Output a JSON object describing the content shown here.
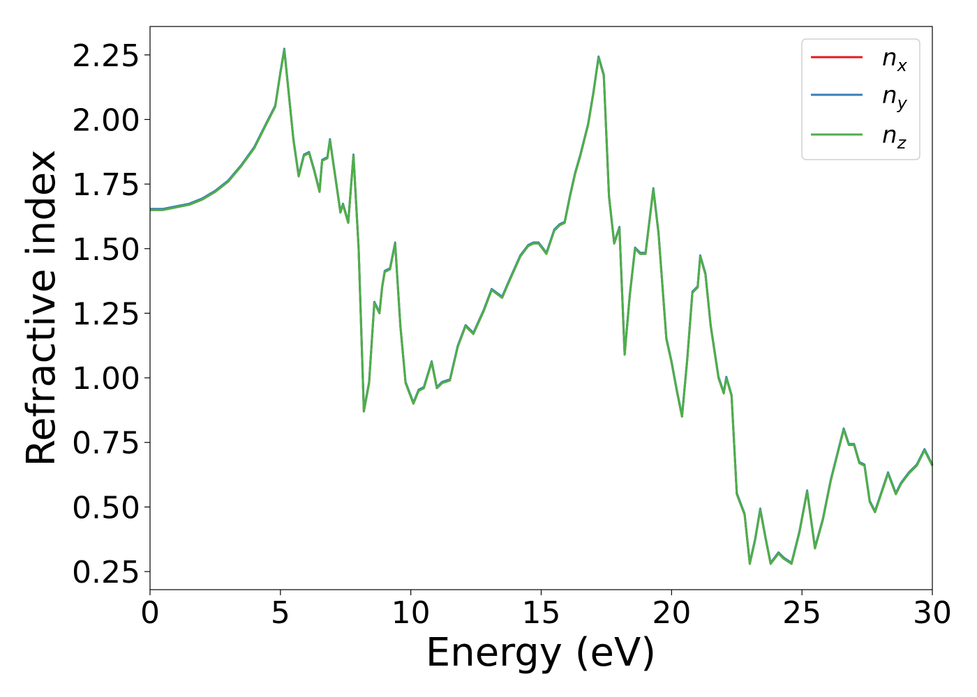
{
  "chart_data": {
    "type": "line",
    "xlabel": "Energy (eV)",
    "ylabel": "Refractive index",
    "xlim": [
      0,
      30
    ],
    "ylim": [
      0.18,
      2.36
    ],
    "x_ticks": [
      "0",
      "5",
      "10",
      "15",
      "20",
      "25",
      "30"
    ],
    "y_ticks": [
      "0.25",
      "0.50",
      "0.75",
      "1.00",
      "1.25",
      "1.50",
      "1.75",
      "2.00",
      "2.25"
    ],
    "grid": false,
    "legend_position": "top-right",
    "series": [
      {
        "name": "n",
        "subscript": "x",
        "color": "#e41a1c"
      },
      {
        "name": "n",
        "subscript": "y",
        "color": "#377eb8"
      },
      {
        "name": "n",
        "subscript": "z",
        "color": "#4daf4a"
      }
    ],
    "x": [
      0,
      0.5,
      1,
      1.5,
      2,
      2.5,
      3,
      3.5,
      4,
      4.5,
      4.8,
      5.0,
      5.15,
      5.3,
      5.5,
      5.7,
      5.9,
      6.1,
      6.3,
      6.5,
      6.6,
      6.8,
      6.9,
      7.1,
      7.3,
      7.4,
      7.6,
      7.8,
      8.0,
      8.2,
      8.4,
      8.6,
      8.8,
      8.9,
      9.0,
      9.2,
      9.4,
      9.6,
      9.8,
      10.1,
      10.3,
      10.5,
      10.8,
      11.0,
      11.2,
      11.5,
      11.8,
      12.1,
      12.4,
      12.8,
      13.1,
      13.5,
      13.8,
      14.2,
      14.5,
      14.7,
      14.9,
      15.2,
      15.5,
      15.7,
      15.9,
      16.1,
      16.3,
      16.5,
      16.8,
      17.0,
      17.2,
      17.4,
      17.6,
      17.8,
      18.0,
      18.2,
      18.4,
      18.6,
      18.8,
      19.0,
      19.3,
      19.5,
      19.8,
      20.0,
      20.2,
      20.4,
      20.6,
      20.8,
      21.0,
      21.1,
      21.3,
      21.5,
      21.8,
      22.0,
      22.1,
      22.3,
      22.5,
      22.8,
      23.0,
      23.2,
      23.4,
      23.6,
      23.8,
      24.1,
      24.3,
      24.6,
      24.9,
      25.2,
      25.5,
      25.8,
      26.1,
      26.3,
      26.6,
      26.8,
      27.0,
      27.2,
      27.4,
      27.6,
      27.8,
      28.0,
      28.3,
      28.6,
      28.8,
      29.1,
      29.4,
      29.7,
      30.0
    ],
    "y": [
      1.65,
      1.65,
      1.66,
      1.67,
      1.69,
      1.72,
      1.76,
      1.82,
      1.89,
      1.99,
      2.05,
      2.18,
      2.27,
      2.12,
      1.92,
      1.78,
      1.86,
      1.87,
      1.8,
      1.72,
      1.84,
      1.85,
      1.92,
      1.78,
      1.64,
      1.67,
      1.6,
      1.86,
      1.5,
      0.87,
      0.98,
      1.29,
      1.25,
      1.35,
      1.41,
      1.42,
      1.52,
      1.2,
      0.98,
      0.9,
      0.95,
      0.96,
      1.06,
      0.96,
      0.98,
      0.99,
      1.12,
      1.2,
      1.17,
      1.26,
      1.34,
      1.31,
      1.38,
      1.47,
      1.51,
      1.52,
      1.52,
      1.48,
      1.57,
      1.59,
      1.6,
      1.7,
      1.79,
      1.86,
      1.98,
      2.1,
      2.24,
      2.17,
      1.7,
      1.52,
      1.58,
      1.09,
      1.32,
      1.5,
      1.48,
      1.48,
      1.73,
      1.56,
      1.15,
      1.06,
      0.95,
      0.85,
      1.07,
      1.33,
      1.35,
      1.47,
      1.4,
      1.2,
      1.0,
      0.94,
      1.0,
      0.93,
      0.55,
      0.47,
      0.28,
      0.37,
      0.49,
      0.38,
      0.28,
      0.32,
      0.3,
      0.28,
      0.4,
      0.56,
      0.34,
      0.45,
      0.6,
      0.68,
      0.8,
      0.74,
      0.74,
      0.67,
      0.66,
      0.52,
      0.48,
      0.54,
      0.63,
      0.55,
      0.59,
      0.63,
      0.66,
      0.72,
      0.66
    ]
  }
}
